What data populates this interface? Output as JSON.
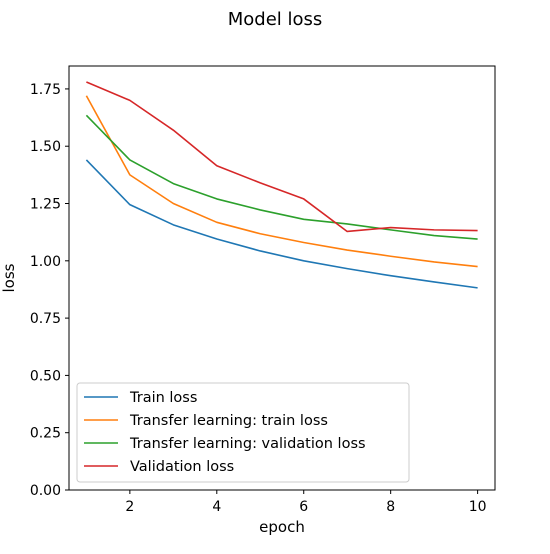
{
  "chart_data": {
    "type": "line",
    "title": "Model loss",
    "xlabel": "epoch",
    "ylabel": "loss",
    "xlim": [
      0.6,
      10.4
    ],
    "ylim": [
      0,
      1.85
    ],
    "x": [
      1,
      2,
      3,
      4,
      5,
      6,
      7,
      8,
      9,
      10
    ],
    "xticks": [
      2,
      4,
      6,
      8,
      10
    ],
    "xtick_labels": [
      "2",
      "4",
      "6",
      "8",
      "10"
    ],
    "yticks": [
      0,
      0.25,
      0.5,
      0.75,
      1.0,
      1.25,
      1.5,
      1.75
    ],
    "ytick_labels": [
      "0.00",
      "0.25",
      "0.50",
      "0.75",
      "1.00",
      "1.25",
      "1.50",
      "1.75"
    ],
    "grid": false,
    "legend_position": "lower-left",
    "series": [
      {
        "name": "Train loss",
        "color": "#1f77b4",
        "values": [
          1.44,
          1.245,
          1.157,
          1.095,
          1.043,
          1.0,
          0.966,
          0.935,
          0.908,
          0.882
        ]
      },
      {
        "name": "Transfer learning: train loss",
        "color": "#ff7f0e",
        "values": [
          1.72,
          1.375,
          1.25,
          1.168,
          1.118,
          1.08,
          1.047,
          1.02,
          0.995,
          0.975
        ]
      },
      {
        "name": "Transfer learning: validation loss",
        "color": "#2ca02c",
        "values": [
          1.635,
          1.44,
          1.337,
          1.27,
          1.222,
          1.181,
          1.161,
          1.135,
          1.11,
          1.095
        ]
      },
      {
        "name": "Validation loss",
        "color": "#d62728",
        "values": [
          1.78,
          1.7,
          1.57,
          1.415,
          1.34,
          1.27,
          1.128,
          1.145,
          1.135,
          1.132
        ]
      }
    ]
  }
}
